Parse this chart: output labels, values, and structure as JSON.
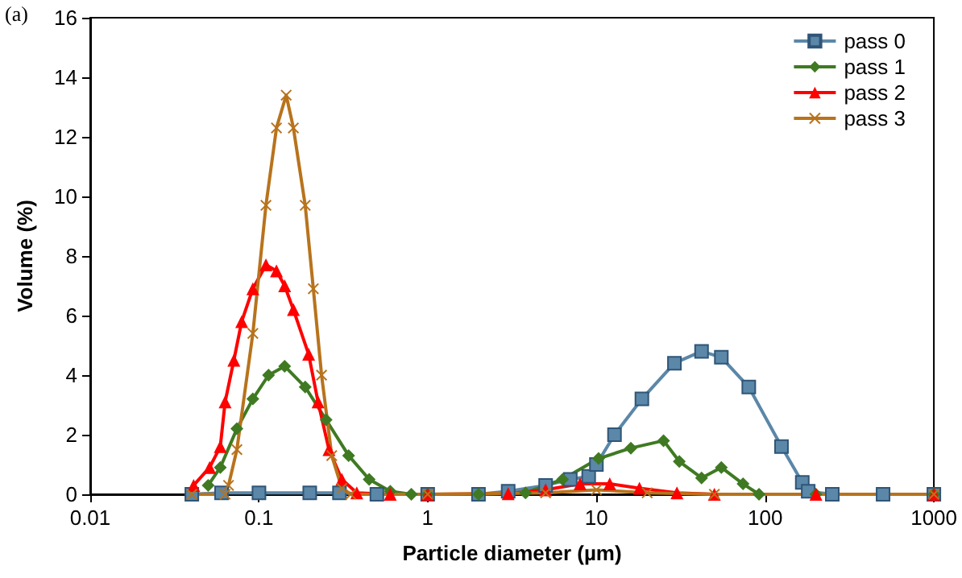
{
  "chart_data": {
    "type": "line",
    "xlabel": "Particle diameter (µm)",
    "ylabel": "Volume (%)",
    "annotations": [
      "(a)"
    ],
    "log": "x",
    "xlim": [
      0.01,
      1000
    ],
    "xticks": [
      0.01,
      0.1,
      1,
      10,
      100,
      1000
    ],
    "ylim": [
      0,
      16
    ],
    "yticks": [
      0,
      2,
      4,
      6,
      8,
      10,
      12,
      14,
      16
    ],
    "grid": false,
    "legend": "top right",
    "series": [
      {
        "name": "pass 0",
        "color": "#5b87a8",
        "marker": "square",
        "x": [
          0.04,
          0.06,
          0.1,
          0.2,
          0.3,
          0.5,
          1,
          2,
          3,
          5,
          7,
          9,
          10,
          12.8,
          18.6,
          29,
          42,
          55,
          80,
          125,
          166,
          180,
          250,
          500,
          1000
        ],
        "values": [
          0,
          0.05,
          0.05,
          0.05,
          0.05,
          0,
          0,
          0,
          0.1,
          0.3,
          0.5,
          0.6,
          1,
          2,
          3.2,
          4.4,
          4.8,
          4.6,
          3.6,
          1.6,
          0.4,
          0.1,
          0,
          0,
          0
        ]
      },
      {
        "name": "pass 1",
        "color": "#3f7a22",
        "marker": "diamond",
        "x": [
          0.05,
          0.059,
          0.074,
          0.092,
          0.114,
          0.142,
          0.188,
          0.25,
          0.34,
          0.45,
          0.6,
          0.8,
          1,
          2,
          3.8,
          6.3,
          10.3,
          16,
          25,
          31,
          42,
          55,
          74,
          92,
          200,
          1000
        ],
        "values": [
          0.3,
          0.9,
          2.2,
          3.2,
          4,
          4.3,
          3.6,
          2.5,
          1.3,
          0.5,
          0.1,
          0,
          0,
          0,
          0.05,
          0.5,
          1.2,
          1.55,
          1.8,
          1.1,
          0.55,
          0.9,
          0.35,
          0,
          0,
          0
        ]
      },
      {
        "name": "pass 2",
        "color": "#ff0000",
        "marker": "triangle",
        "x": [
          0.041,
          0.051,
          0.059,
          0.063,
          0.071,
          0.079,
          0.092,
          0.11,
          0.127,
          0.142,
          0.16,
          0.197,
          0.224,
          0.26,
          0.31,
          0.38,
          0.6,
          1,
          3,
          5,
          8,
          12,
          18,
          30,
          50,
          200,
          1000
        ],
        "values": [
          0.3,
          0.9,
          1.6,
          3.1,
          4.5,
          5.8,
          6.9,
          7.7,
          7.5,
          7,
          6.2,
          4.7,
          3.1,
          1.5,
          0.5,
          0.05,
          0,
          0,
          0.02,
          0.15,
          0.35,
          0.35,
          0.2,
          0.05,
          0,
          0,
          0
        ]
      },
      {
        "name": "pass 3",
        "color": "#b8731c",
        "marker": "cross",
        "x": [
          0.04,
          0.063,
          0.066,
          0.074,
          0.092,
          0.11,
          0.127,
          0.145,
          0.16,
          0.188,
          0.21,
          0.235,
          0.27,
          0.31,
          0.35,
          1,
          5,
          10,
          20,
          50,
          1000
        ],
        "values": [
          0,
          0,
          0.3,
          1.5,
          5.4,
          9.7,
          12.3,
          13.4,
          12.3,
          9.7,
          6.9,
          4,
          1.3,
          0.2,
          0,
          0,
          0.05,
          0.15,
          0.05,
          0,
          0
        ]
      }
    ]
  }
}
